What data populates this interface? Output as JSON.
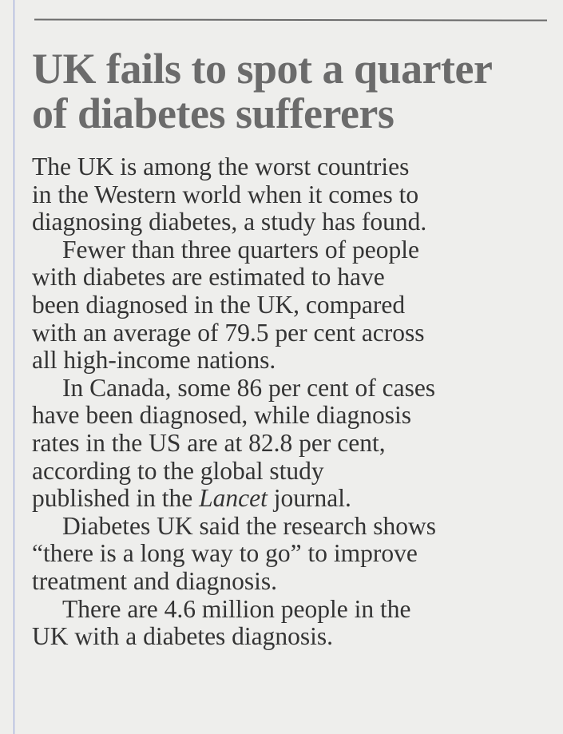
{
  "article": {
    "headline_lines": [
      "UK fails to spot a quarter",
      "of diabetes sufferers"
    ],
    "lines": [
      "The UK is among the worst countries",
      "in the Western world when it comes to",
      "diagnosing diabetes, a study has found.",
      "Fewer than three quarters of people",
      "with diabetes are estimated to have",
      "been diagnosed in the UK, compared",
      "with an average of 79.5 per cent across",
      "all high-income nations.",
      "In Canada, some 86 per cent of cases",
      "have been diagnosed, while diagnosis",
      "rates in the US are at 82.8 per cent,",
      "according to the global study",
      "published in the ",
      "Diabetes UK said the research shows",
      "“there is a long way to go” to improve",
      "treatment and diagnosis.",
      "There are 4.6 million people in the",
      "UK with a diabetes diagnosis."
    ],
    "lancet": "Lancet",
    "journal_suffix": " journal."
  }
}
